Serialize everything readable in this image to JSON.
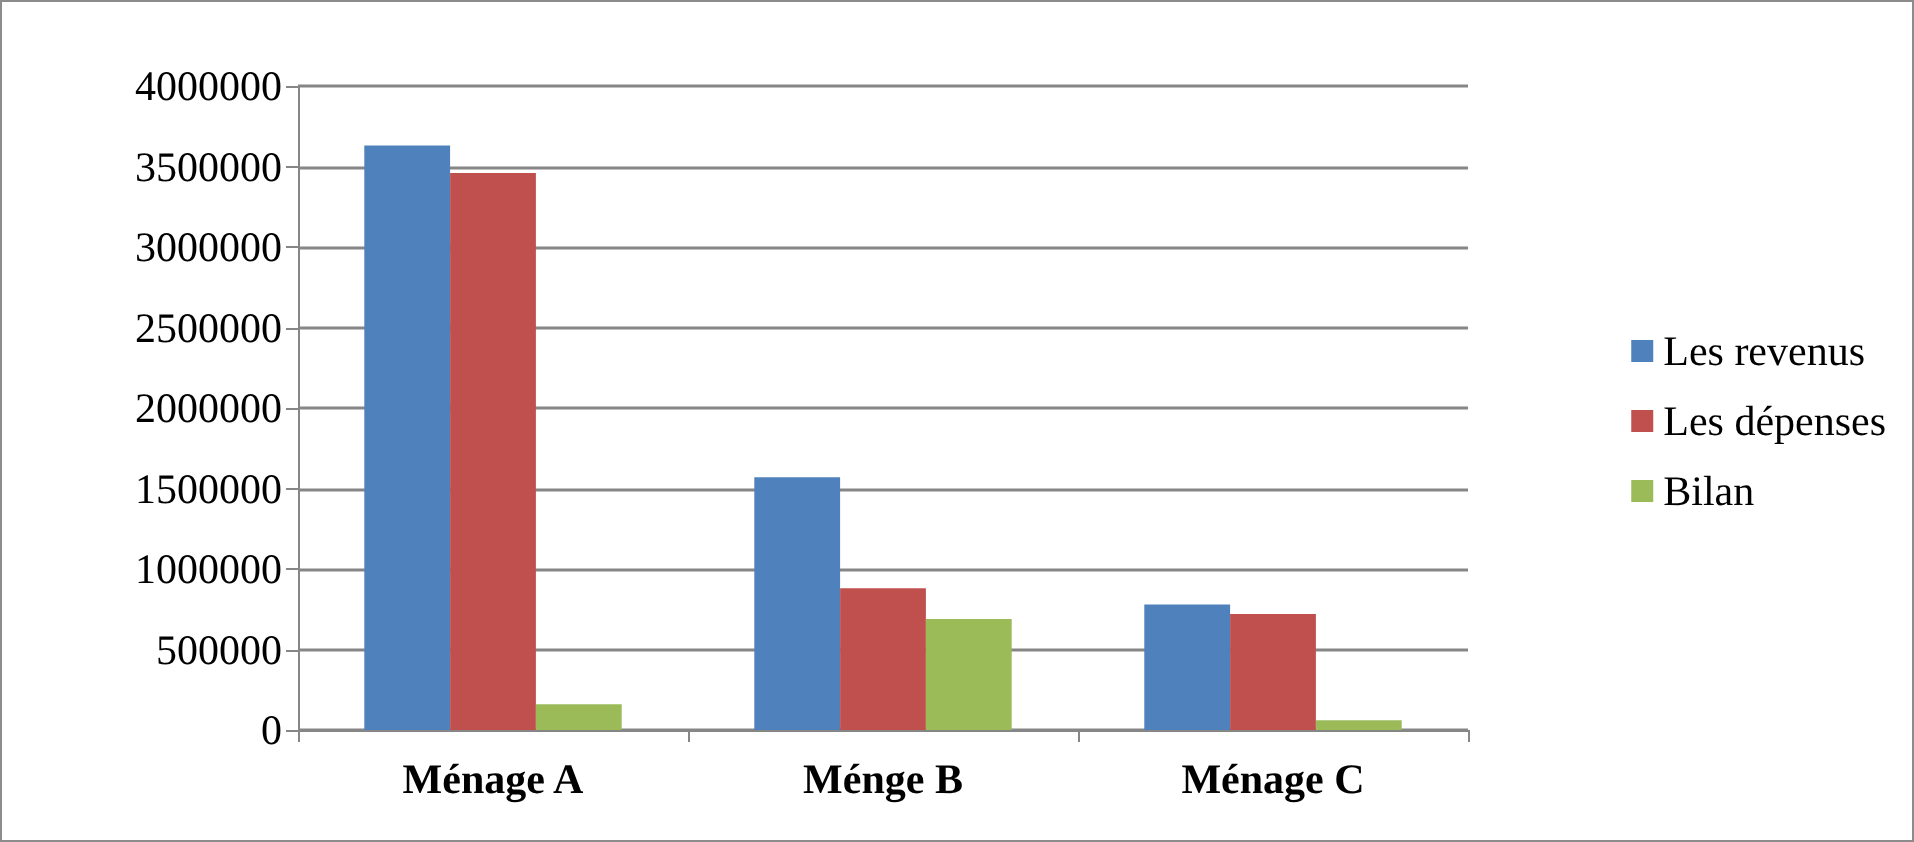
{
  "chart_data": {
    "type": "bar",
    "categories": [
      "Ménage A",
      "Ménge B",
      "Ménage C"
    ],
    "series": [
      {
        "name": "Les revenus",
        "color": "#4f81bd",
        "values": [
          3630000,
          1570000,
          780000
        ]
      },
      {
        "name": "Les dépenses",
        "color": "#c0504d",
        "values": [
          3460000,
          880000,
          720000
        ]
      },
      {
        "name": "Bilan",
        "color": "#9bbb59",
        "values": [
          160000,
          690000,
          60000
        ]
      }
    ],
    "ylim": [
      0,
      4000000
    ],
    "yticks": [
      0,
      500000,
      1000000,
      1500000,
      2000000,
      2500000,
      3000000,
      3500000,
      4000000
    ],
    "grid": "y",
    "legend": "right"
  }
}
